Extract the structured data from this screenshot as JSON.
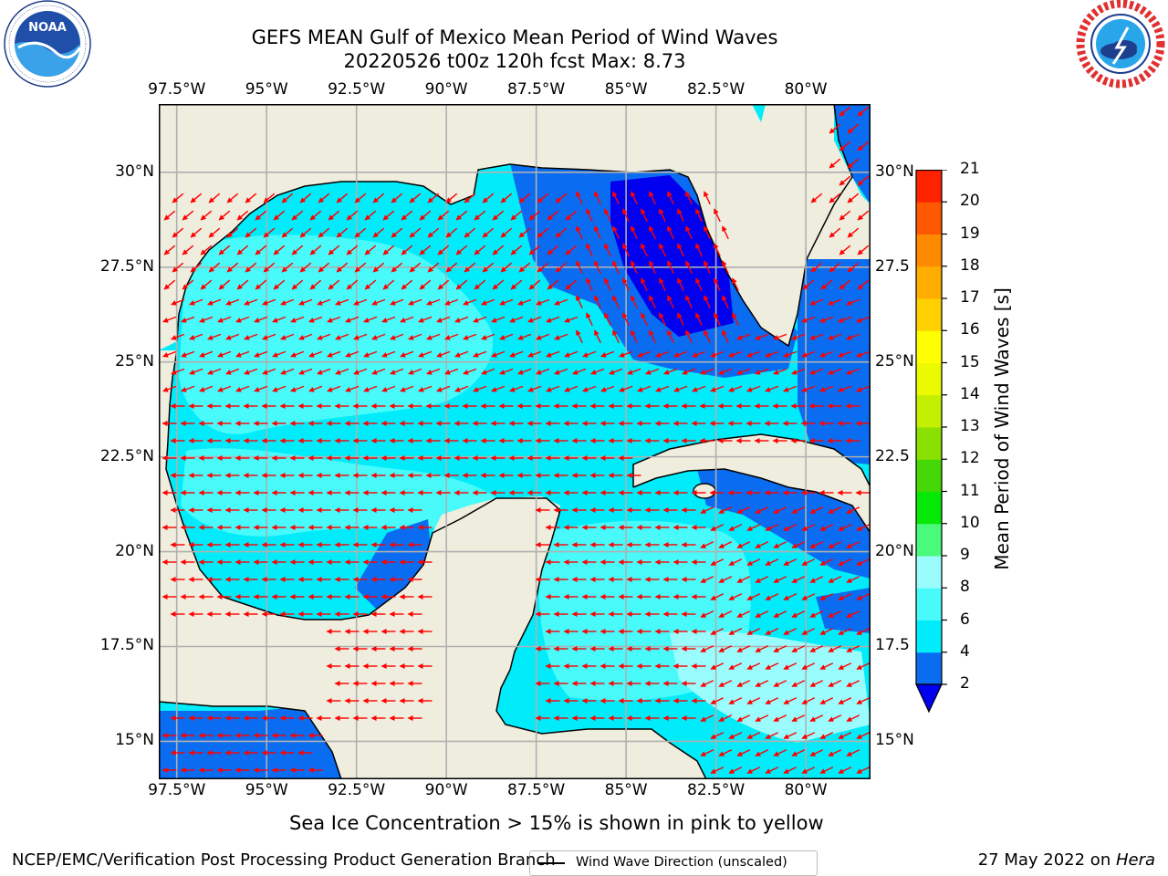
{
  "header": {
    "title_line1": "GEFS MEAN Gulf of Mexico Mean Period of Wind Waves",
    "title_line2": "20220526 t00z 120h fcst   Max: 8.73"
  },
  "logos": {
    "noaa": {
      "icon": "noaa-logo",
      "text": "NOAA",
      "ring_text": "NATIONAL OCEANIC AND ATMOSPHERIC ADMINISTRATION · U.S. DEPARTMENT OF COMMERCE"
    },
    "nws": {
      "icon": "nws-logo",
      "ring_text": "NATIONAL WEATHER SERVICE"
    }
  },
  "map": {
    "lon_ticks": [
      "97.5°W",
      "95°W",
      "92.5°W",
      "90°W",
      "87.5°W",
      "85°W",
      "82.5°W",
      "80°W"
    ],
    "lat_ticks_left": [
      "30°N",
      "27.5°N",
      "25°N",
      "22.5°N",
      "20°N",
      "17.5°N",
      "15°N"
    ],
    "lat_ticks_right": [
      "30°N",
      "27.5",
      "25°N",
      "22.5",
      "20°N",
      "17.5",
      "15°N"
    ],
    "extent": {
      "lon": [
        -98.0,
        -78.2
      ],
      "lat": [
        14.0,
        31.8
      ]
    },
    "legend_label": "Wind Wave Direction (unscaled)",
    "colors": {
      "land": "#efedde",
      "grid": "#b0b0b0",
      "arrow": "#ff0000",
      "coast": "#000000"
    }
  },
  "colorbar": {
    "label": "Mean Period of Wind Waves [s]",
    "ticks": [
      "2",
      "4",
      "6",
      "8",
      "9",
      "10",
      "11",
      "12",
      "13",
      "14",
      "15",
      "16",
      "17",
      "18",
      "19",
      "20",
      "21"
    ],
    "colors": [
      "#0a6cf0",
      "#00ecfa",
      "#48fafa",
      "#9afcfc",
      "#4afa7a",
      "#06e806",
      "#46d806",
      "#8ae000",
      "#c2f000",
      "#ecfa00",
      "#ffff00",
      "#ffd000",
      "#ffae00",
      "#ff8a00",
      "#ff5800",
      "#ff2200",
      "#ff0000"
    ],
    "under_color": "#0000ee"
  },
  "note": "Sea Ice Concentration > 15% is shown in pink to yellow",
  "footer": {
    "left": "NCEP/EMC/Verification Post Processing Product Generation Branch",
    "right_date": "27 May 2022 on ",
    "right_host": "Hera"
  }
}
